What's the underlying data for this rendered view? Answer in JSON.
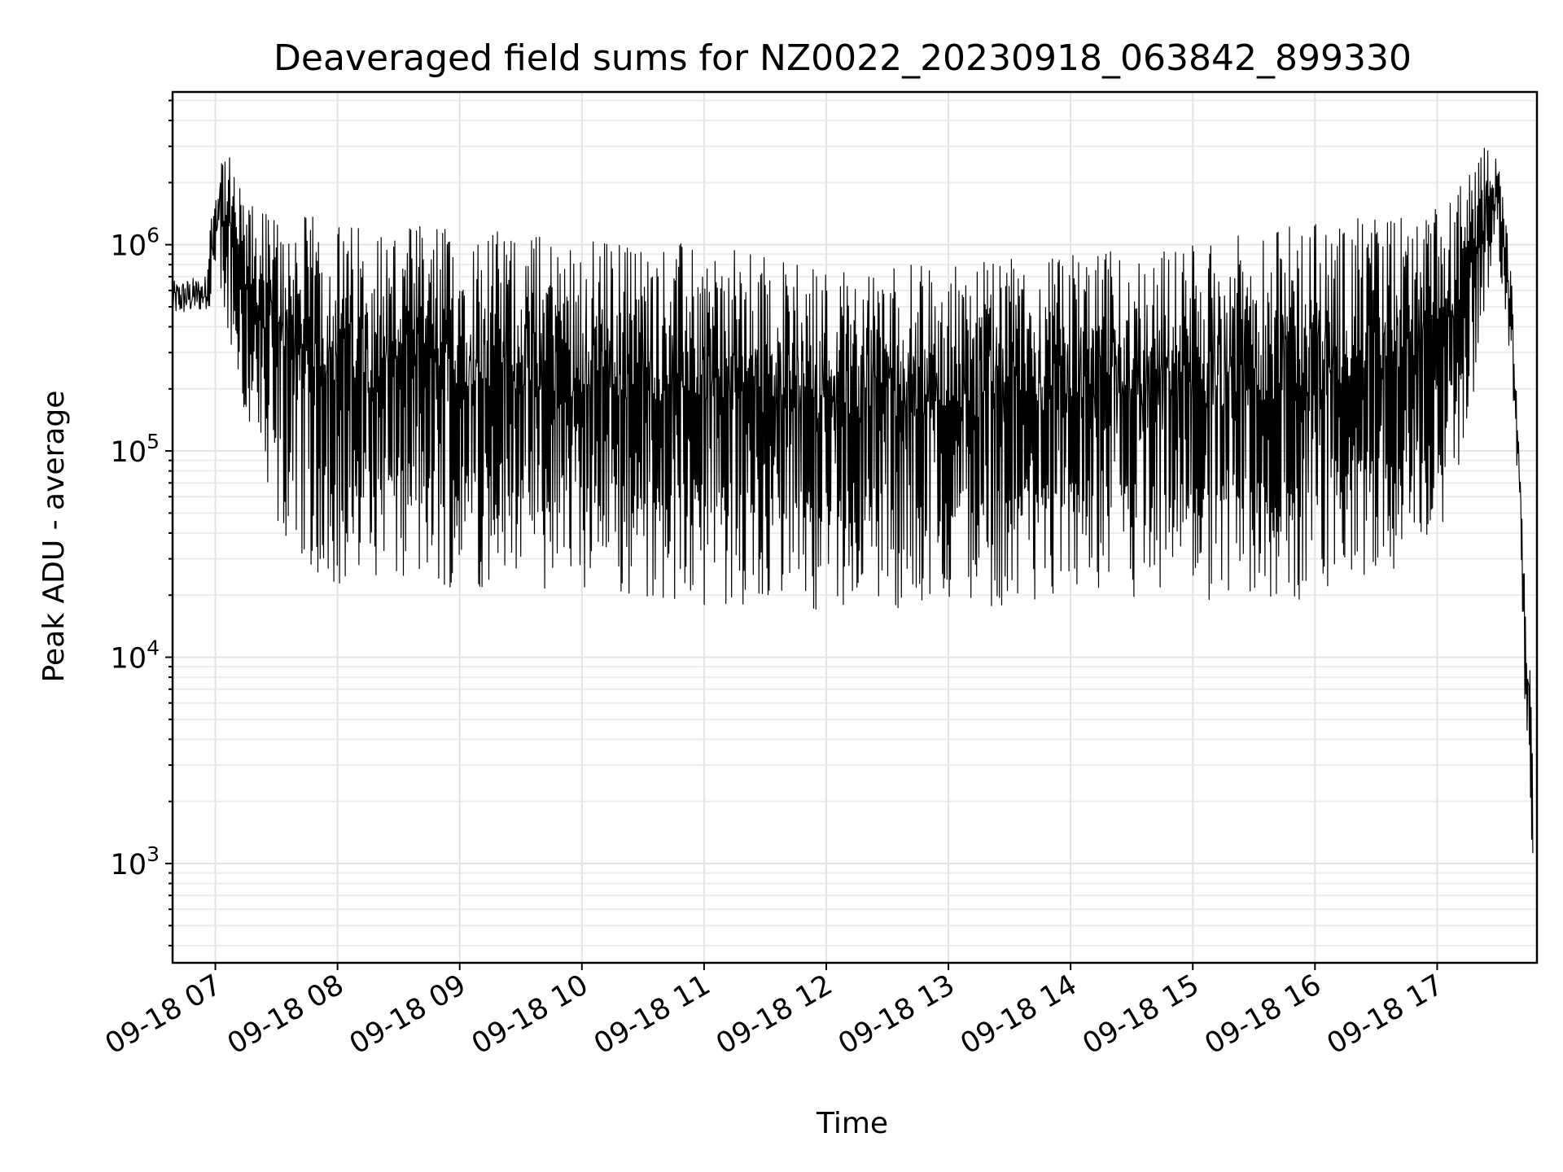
{
  "chart_data": {
    "type": "line",
    "title": "Deaveraged field sums for NZ0022_20230918_063842_899330",
    "xlabel": "Time",
    "ylabel": "Peak ADU - average",
    "yscale": "log",
    "grid": "major and minor",
    "line_color": "#000000",
    "x_range": [
      "09-18 06:39",
      "09-18 17:49"
    ],
    "ylim": [
      330,
      5500000
    ],
    "x_ticks": [
      {
        "t": "09-18 07:00",
        "label": "09-18 07"
      },
      {
        "t": "09-18 08:00",
        "label": "09-18 08"
      },
      {
        "t": "09-18 09:00",
        "label": "09-18 09"
      },
      {
        "t": "09-18 10:00",
        "label": "09-18 10"
      },
      {
        "t": "09-18 11:00",
        "label": "09-18 11"
      },
      {
        "t": "09-18 12:00",
        "label": "09-18 12"
      },
      {
        "t": "09-18 13:00",
        "label": "09-18 13"
      },
      {
        "t": "09-18 14:00",
        "label": "09-18 14"
      },
      {
        "t": "09-18 15:00",
        "label": "09-18 15"
      },
      {
        "t": "09-18 16:00",
        "label": "09-18 16"
      },
      {
        "t": "09-18 17:00",
        "label": "09-18 17"
      }
    ],
    "y_ticks": [
      {
        "value": 1000,
        "base": "10",
        "exp": "3"
      },
      {
        "value": 10000,
        "base": "10",
        "exp": "4"
      },
      {
        "value": 100000,
        "base": "10",
        "exp": "5"
      },
      {
        "value": 1000000,
        "base": "10",
        "exp": "6"
      }
    ],
    "envelope": [
      {
        "t": "09-18 06:39",
        "low": 420000,
        "high": 700000
      },
      {
        "t": "09-18 06:55",
        "low": 450000,
        "high": 750000
      },
      {
        "t": "09-18 07:00",
        "low": 500000,
        "high": 2200000
      },
      {
        "t": "09-18 07:03",
        "low": 400000,
        "high": 3400000
      },
      {
        "t": "09-18 07:15",
        "low": 150000,
        "high": 1600000
      },
      {
        "t": "09-18 07:30",
        "low": 40000,
        "high": 1500000
      },
      {
        "t": "09-18 08:00",
        "low": 20000,
        "high": 1300000
      },
      {
        "t": "09-18 09:00",
        "low": 22000,
        "high": 1250000
      },
      {
        "t": "09-18 10:00",
        "low": 20000,
        "high": 1100000
      },
      {
        "t": "09-18 11:00",
        "low": 18000,
        "high": 1000000
      },
      {
        "t": "09-18 12:00",
        "low": 17000,
        "high": 800000
      },
      {
        "t": "09-18 13:00",
        "low": 17000,
        "high": 800000
      },
      {
        "t": "09-18 14:00",
        "low": 19000,
        "high": 900000
      },
      {
        "t": "09-18 15:00",
        "low": 16000,
        "high": 1000000
      },
      {
        "t": "09-18 16:00",
        "low": 18000,
        "high": 1300000
      },
      {
        "t": "09-18 17:00",
        "low": 30000,
        "high": 1500000
      },
      {
        "t": "09-18 17:20",
        "low": 200000,
        "high": 2500000
      },
      {
        "t": "09-18 17:26",
        "low": 700000,
        "high": 3400000
      },
      {
        "t": "09-18 17:32",
        "low": 600000,
        "high": 2300000
      },
      {
        "t": "09-18 17:37",
        "low": 200000,
        "high": 600000
      },
      {
        "t": "09-18 17:41",
        "low": 35000,
        "high": 70000
      },
      {
        "t": "09-18 17:44",
        "low": 2600,
        "high": 18000
      },
      {
        "t": "09-18 17:46",
        "low": 1100,
        "high": 8000
      },
      {
        "t": "09-18 17:47",
        "low": 1100,
        "high": 3000
      }
    ]
  }
}
